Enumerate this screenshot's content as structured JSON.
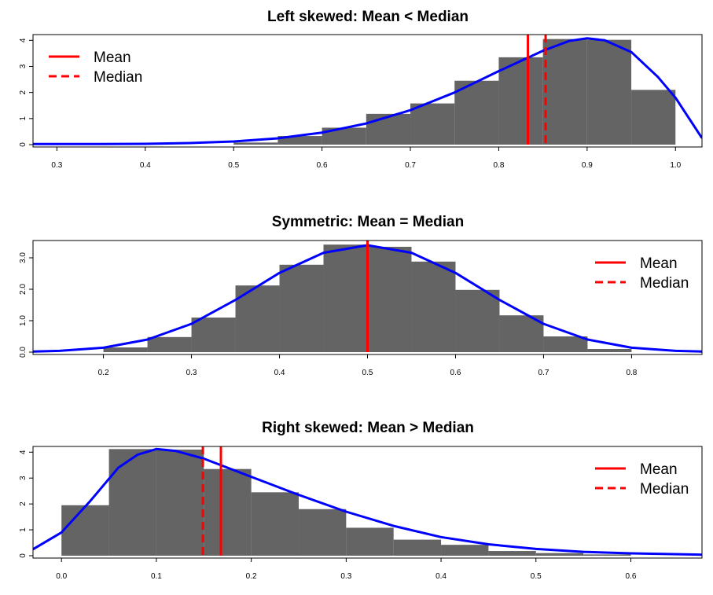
{
  "colors": {
    "bar": "#646464",
    "density": "#0000ff",
    "mean": "#ff0000",
    "median": "#ff0000",
    "frame": "#000000"
  },
  "chart_data": [
    {
      "type": "bar",
      "title": "Left skewed: Mean < Median",
      "xlim": [
        0.273,
        1.03
      ],
      "ylim": [
        0,
        4.1
      ],
      "xticks": [
        "0.3",
        "0.4",
        "0.5",
        "0.6",
        "0.7",
        "0.8",
        "0.9",
        "1.0"
      ],
      "yticks": [
        "0",
        "1",
        "2",
        "3",
        "4"
      ],
      "bins": [
        {
          "x0": 0.5,
          "x1": 0.55,
          "h": 0.08
        },
        {
          "x0": 0.55,
          "x1": 0.6,
          "h": 0.33
        },
        {
          "x0": 0.6,
          "x1": 0.65,
          "h": 0.65
        },
        {
          "x0": 0.65,
          "x1": 0.7,
          "h": 1.18
        },
        {
          "x0": 0.7,
          "x1": 0.75,
          "h": 1.58
        },
        {
          "x0": 0.75,
          "x1": 0.8,
          "h": 2.45
        },
        {
          "x0": 0.8,
          "x1": 0.85,
          "h": 3.35
        },
        {
          "x0": 0.85,
          "x1": 0.9,
          "h": 4.05
        },
        {
          "x0": 0.9,
          "x1": 0.95,
          "h": 4.02
        },
        {
          "x0": 0.95,
          "x1": 1.0,
          "h": 2.1
        }
      ],
      "density": [
        [
          0.273,
          0.02
        ],
        [
          0.3,
          0.02
        ],
        [
          0.35,
          0.02
        ],
        [
          0.4,
          0.03
        ],
        [
          0.45,
          0.06
        ],
        [
          0.5,
          0.12
        ],
        [
          0.55,
          0.24
        ],
        [
          0.6,
          0.46
        ],
        [
          0.65,
          0.81
        ],
        [
          0.7,
          1.32
        ],
        [
          0.75,
          2.0
        ],
        [
          0.8,
          2.82
        ],
        [
          0.85,
          3.6
        ],
        [
          0.88,
          3.98
        ],
        [
          0.9,
          4.08
        ],
        [
          0.92,
          4.0
        ],
        [
          0.95,
          3.55
        ],
        [
          0.98,
          2.6
        ],
        [
          1.0,
          1.8
        ],
        [
          1.03,
          0.25
        ]
      ],
      "mean": 0.833,
      "median": 0.853,
      "legend": {
        "position": "top-left",
        "mean_label": "Mean",
        "median_label": "Median"
      }
    },
    {
      "type": "bar",
      "title": "Symmetric: Mean = Median",
      "xlim": [
        0.12,
        0.88
      ],
      "ylim": [
        0,
        3.45
      ],
      "xticks": [
        "0.2",
        "0.3",
        "0.4",
        "0.5",
        "0.6",
        "0.7",
        "0.8"
      ],
      "yticks": [
        "0.0",
        "1.0",
        "2.0",
        "3.0"
      ],
      "bins": [
        {
          "x0": 0.2,
          "x1": 0.25,
          "h": 0.15
        },
        {
          "x0": 0.25,
          "x1": 0.3,
          "h": 0.48
        },
        {
          "x0": 0.3,
          "x1": 0.35,
          "h": 1.1
        },
        {
          "x0": 0.35,
          "x1": 0.4,
          "h": 2.12
        },
        {
          "x0": 0.4,
          "x1": 0.45,
          "h": 2.78
        },
        {
          "x0": 0.45,
          "x1": 0.5,
          "h": 3.42
        },
        {
          "x0": 0.5,
          "x1": 0.55,
          "h": 3.35
        },
        {
          "x0": 0.55,
          "x1": 0.6,
          "h": 2.88
        },
        {
          "x0": 0.6,
          "x1": 0.65,
          "h": 1.98
        },
        {
          "x0": 0.65,
          "x1": 0.7,
          "h": 1.17
        },
        {
          "x0": 0.7,
          "x1": 0.75,
          "h": 0.5
        },
        {
          "x0": 0.75,
          "x1": 0.8,
          "h": 0.1
        }
      ],
      "density": [
        [
          0.12,
          0.02
        ],
        [
          0.15,
          0.04
        ],
        [
          0.2,
          0.14
        ],
        [
          0.25,
          0.4
        ],
        [
          0.3,
          0.9
        ],
        [
          0.35,
          1.66
        ],
        [
          0.4,
          2.52
        ],
        [
          0.45,
          3.16
        ],
        [
          0.5,
          3.4
        ],
        [
          0.55,
          3.16
        ],
        [
          0.6,
          2.52
        ],
        [
          0.65,
          1.66
        ],
        [
          0.7,
          0.9
        ],
        [
          0.75,
          0.4
        ],
        [
          0.8,
          0.14
        ],
        [
          0.85,
          0.04
        ],
        [
          0.88,
          0.02
        ]
      ],
      "mean": 0.5,
      "median": 0.5,
      "legend": {
        "position": "top-right",
        "mean_label": "Mean",
        "median_label": "Median"
      }
    },
    {
      "type": "bar",
      "title": "Right skewed: Mean > Median",
      "xlim": [
        -0.03,
        0.675
      ],
      "ylim": [
        0,
        4.1
      ],
      "xticks": [
        "0.0",
        "0.1",
        "0.2",
        "0.3",
        "0.4",
        "0.5",
        "0.6"
      ],
      "yticks": [
        "0",
        "1",
        "2",
        "3",
        "4"
      ],
      "bins": [
        {
          "x0": 0.0,
          "x1": 0.05,
          "h": 1.95
        },
        {
          "x0": 0.05,
          "x1": 0.1,
          "h": 4.12
        },
        {
          "x0": 0.1,
          "x1": 0.15,
          "h": 4.1
        },
        {
          "x0": 0.15,
          "x1": 0.2,
          "h": 3.35
        },
        {
          "x0": 0.2,
          "x1": 0.25,
          "h": 2.45
        },
        {
          "x0": 0.25,
          "x1": 0.3,
          "h": 1.8
        },
        {
          "x0": 0.3,
          "x1": 0.35,
          "h": 1.08
        },
        {
          "x0": 0.35,
          "x1": 0.4,
          "h": 0.62
        },
        {
          "x0": 0.4,
          "x1": 0.45,
          "h": 0.42
        },
        {
          "x0": 0.45,
          "x1": 0.5,
          "h": 0.18
        },
        {
          "x0": 0.5,
          "x1": 0.55,
          "h": 0.1
        },
        {
          "x0": 0.55,
          "x1": 0.6,
          "h": 0.05
        }
      ],
      "density": [
        [
          -0.03,
          0.25
        ],
        [
          0.0,
          0.9
        ],
        [
          0.03,
          2.1
        ],
        [
          0.06,
          3.4
        ],
        [
          0.08,
          3.9
        ],
        [
          0.1,
          4.12
        ],
        [
          0.12,
          4.05
        ],
        [
          0.15,
          3.75
        ],
        [
          0.2,
          3.05
        ],
        [
          0.25,
          2.35
        ],
        [
          0.3,
          1.7
        ],
        [
          0.35,
          1.15
        ],
        [
          0.4,
          0.72
        ],
        [
          0.45,
          0.44
        ],
        [
          0.5,
          0.26
        ],
        [
          0.55,
          0.15
        ],
        [
          0.6,
          0.09
        ],
        [
          0.675,
          0.04
        ]
      ],
      "mean": 0.168,
      "median": 0.149,
      "legend": {
        "position": "top-right",
        "mean_label": "Mean",
        "median_label": "Median"
      }
    }
  ]
}
